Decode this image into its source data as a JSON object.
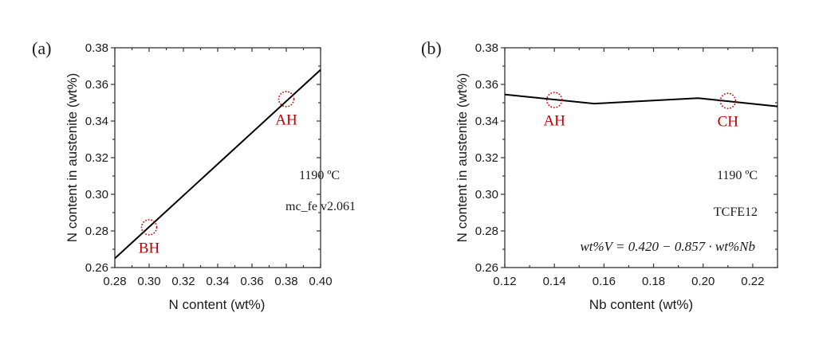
{
  "chart_data": [
    {
      "type": "line",
      "panel_label": "(a)",
      "xlabel": "N content (wt%)",
      "ylabel": "N content in austenite (wt%)",
      "xlim": [
        0.28,
        0.4
      ],
      "ylim": [
        0.26,
        0.38
      ],
      "x_ticks": [
        "0.28",
        "0.30",
        "0.32",
        "0.34",
        "0.36",
        "0.38",
        "0.40"
      ],
      "y_ticks": [
        "0.26",
        "0.28",
        "0.30",
        "0.32",
        "0.34",
        "0.36",
        "0.38"
      ],
      "grid": false,
      "series": [
        {
          "name": "N in austenite",
          "x": [
            0.28,
            0.4
          ],
          "y": [
            0.265,
            0.368
          ],
          "color": "#000000"
        }
      ],
      "markers": [
        {
          "label": "BH",
          "x": 0.3,
          "y": 0.282,
          "color": "#c00000"
        },
        {
          "label": "AH",
          "x": 0.38,
          "y": 0.352,
          "color": "#c00000"
        }
      ],
      "annotations": [
        "1190 ºC",
        "mc_fe v2.061"
      ]
    },
    {
      "type": "line",
      "panel_label": "(b)",
      "xlabel": "Nb content (wt%)",
      "ylabel": "N content in austenite (wt%)",
      "xlim": [
        0.12,
        0.23
      ],
      "ylim": [
        0.26,
        0.38
      ],
      "x_ticks": [
        "0.12",
        "0.14",
        "0.16",
        "0.18",
        "0.20",
        "0.22"
      ],
      "y_ticks": [
        "0.26",
        "0.28",
        "0.30",
        "0.32",
        "0.34",
        "0.36",
        "0.38"
      ],
      "grid": false,
      "series": [
        {
          "name": "N in austenite",
          "x": [
            0.12,
            0.156,
            0.198,
            0.23
          ],
          "y": [
            0.3545,
            0.3495,
            0.3525,
            0.348
          ],
          "color": "#000000"
        }
      ],
      "markers": [
        {
          "label": "AH",
          "x": 0.14,
          "y": 0.3515,
          "color": "#c00000"
        },
        {
          "label": "CH",
          "x": 0.21,
          "y": 0.351,
          "color": "#c00000"
        }
      ],
      "annotations": [
        "1190 ºC",
        "TCFE12",
        "wt%V = 0.420 − 0.857 · wt%Nb"
      ]
    }
  ]
}
